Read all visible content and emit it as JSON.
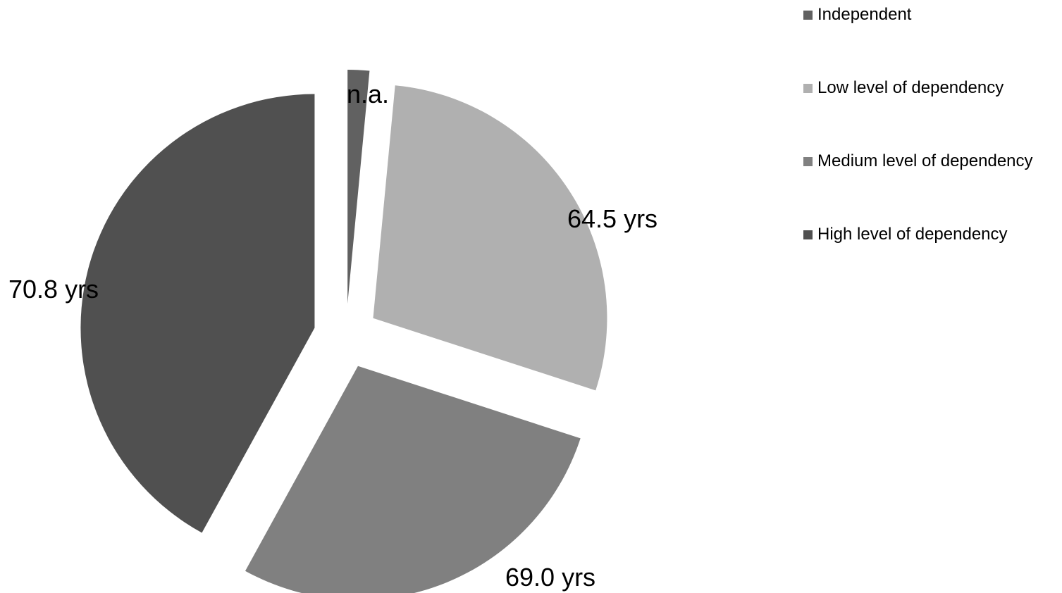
{
  "chart_data": {
    "type": "pie",
    "title": "",
    "categories": [
      "Independent",
      "Low level of dependency",
      "Medium level of dependency",
      "High level of dependency"
    ],
    "values": [
      1.5,
      28.5,
      28.0,
      42.0
    ],
    "data_labels": [
      "n.a.",
      "64.5 yrs",
      "69.0 yrs",
      "70.8 yrs"
    ],
    "colors": [
      "#616161",
      "#b0b0b0",
      "#808080",
      "#505050"
    ],
    "exploded": true,
    "legend_position": "top-right"
  }
}
